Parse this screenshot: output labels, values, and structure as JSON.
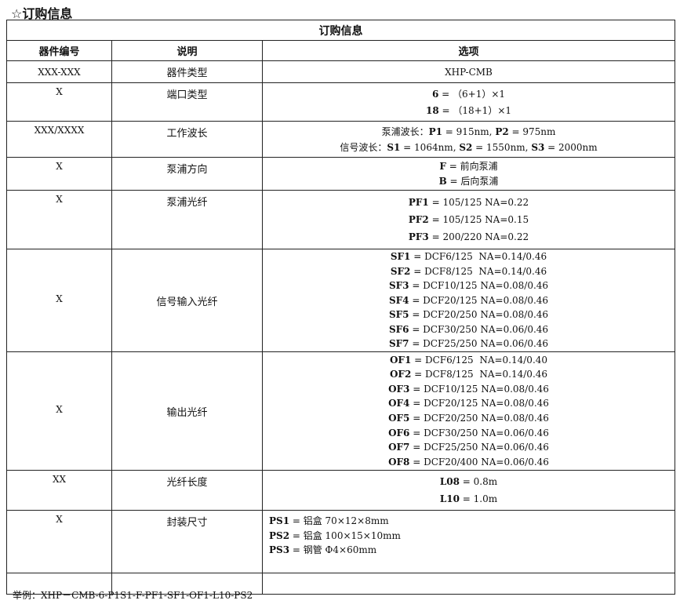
{
  "title": "☆订购信息",
  "table": {
    "caption": "订购信息",
    "headers": [
      "器件编号",
      "说明",
      "选项"
    ],
    "rows": [
      {
        "code": "XXX-XXX",
        "desc": "器件类型",
        "lines": [
          [
            {
              "b": false,
              "t": "XHP-CMB"
            }
          ]
        ]
      },
      {
        "code": "X",
        "desc": "端口类型",
        "lines": [
          [
            {
              "b": true,
              "t": "6"
            },
            {
              "b": false,
              "t": " = （6+1）×1"
            }
          ],
          [
            {
              "b": true,
              "t": "18"
            },
            {
              "b": false,
              "t": " = （18+1）×1"
            }
          ]
        ]
      },
      {
        "code": "XXX/XXXX",
        "desc": "工作波长",
        "lines": [
          [
            {
              "b": false,
              "t": "泵浦波长："
            },
            {
              "b": true,
              "t": "P1"
            },
            {
              "b": false,
              "t": " = 915nm, "
            },
            {
              "b": true,
              "t": "P2"
            },
            {
              "b": false,
              "t": " = 975nm"
            }
          ],
          [
            {
              "b": false,
              "t": "信号波长："
            },
            {
              "b": true,
              "t": "S1"
            },
            {
              "b": false,
              "t": " = 1064nm, "
            },
            {
              "b": true,
              "t": "S2"
            },
            {
              "b": false,
              "t": " = 1550nm, "
            },
            {
              "b": true,
              "t": "S3"
            },
            {
              "b": false,
              "t": " = 2000nm"
            }
          ]
        ]
      },
      {
        "code": "X",
        "desc": "泵浦方向",
        "style": "tight",
        "lines": [
          [
            {
              "b": true,
              "t": "F"
            },
            {
              "b": false,
              "t": " = 前向泵浦"
            }
          ],
          [
            {
              "b": true,
              "t": "B"
            },
            {
              "b": false,
              "t": " = 后向泵浦"
            }
          ]
        ]
      },
      {
        "code": "X",
        "desc": "泵浦光纤",
        "lines": [
          [
            {
              "b": true,
              "t": "PF1"
            },
            {
              "b": false,
              "t": " = 105/125 NA=0.22"
            }
          ],
          [
            {
              "b": true,
              "t": "PF2"
            },
            {
              "b": false,
              "t": " = 105/125 NA=0.15"
            }
          ],
          [
            {
              "b": true,
              "t": "PF3"
            },
            {
              "b": false,
              "t": " = 200/220 NA=0.22"
            }
          ]
        ]
      },
      {
        "code": "X",
        "desc": "信号输入光纤",
        "style": "tight",
        "lines": [
          [
            {
              "b": true,
              "t": "SF1"
            },
            {
              "b": false,
              "t": " = DCF6/125  NA=0.14/0.46"
            }
          ],
          [
            {
              "b": true,
              "t": "SF2"
            },
            {
              "b": false,
              "t": " = DCF8/125  NA=0.14/0.46"
            }
          ],
          [
            {
              "b": true,
              "t": "SF3"
            },
            {
              "b": false,
              "t": " = DCF10/125 NA=0.08/0.46"
            }
          ],
          [
            {
              "b": true,
              "t": "SF4"
            },
            {
              "b": false,
              "t": " = DCF20/125 NA=0.08/0.46"
            }
          ],
          [
            {
              "b": true,
              "t": "SF5"
            },
            {
              "b": false,
              "t": " = DCF20/250 NA=0.08/0.46"
            }
          ],
          [
            {
              "b": true,
              "t": "SF6"
            },
            {
              "b": false,
              "t": " = DCF30/250 NA=0.06/0.46"
            }
          ],
          [
            {
              "b": true,
              "t": "SF7"
            },
            {
              "b": false,
              "t": " = DCF25/250 NA=0.06/0.46"
            }
          ]
        ]
      },
      {
        "code": "X",
        "desc": "输出光纤",
        "style": "tight",
        "lines": [
          [
            {
              "b": true,
              "t": "OF1"
            },
            {
              "b": false,
              "t": " = DCF6/125  NA=0.14/0.40"
            }
          ],
          [
            {
              "b": true,
              "t": "OF2"
            },
            {
              "b": false,
              "t": " = DCF8/125  NA=0.14/0.46"
            }
          ],
          [
            {
              "b": true,
              "t": "OF3"
            },
            {
              "b": false,
              "t": " = DCF10/125 NA=0.08/0.46"
            }
          ],
          [
            {
              "b": true,
              "t": "OF4"
            },
            {
              "b": false,
              "t": " = DCF20/125 NA=0.08/0.46"
            }
          ],
          [
            {
              "b": true,
              "t": "OF5"
            },
            {
              "b": false,
              "t": " = DCF20/250 NA=0.08/0.46"
            }
          ],
          [
            {
              "b": true,
              "t": "OF6"
            },
            {
              "b": false,
              "t": " = DCF30/250 NA=0.06/0.46"
            }
          ],
          [
            {
              "b": true,
              "t": "OF7"
            },
            {
              "b": false,
              "t": " = DCF25/250 NA=0.06/0.46"
            }
          ],
          [
            {
              "b": true,
              "t": "OF8"
            },
            {
              "b": false,
              "t": " = DCF20/400 NA=0.06/0.46"
            }
          ]
        ]
      },
      {
        "code": "XX",
        "desc": "光纤长度",
        "lines": [
          [
            {
              "b": true,
              "t": "L08"
            },
            {
              "b": false,
              "t": " = 0.8m"
            }
          ],
          [
            {
              "b": true,
              "t": "L10"
            },
            {
              "b": false,
              "t": " = 1.0m"
            }
          ]
        ]
      },
      {
        "code": "X",
        "desc": "封装尺寸",
        "style": "left",
        "lines": [
          [
            {
              "b": true,
              "t": "PS1"
            },
            {
              "b": false,
              "t": " = 铝盒 70×12×8mm"
            }
          ],
          [
            {
              "b": true,
              "t": "PS2"
            },
            {
              "b": false,
              "t": " = 铝盒 100×15×10mm"
            }
          ],
          [
            {
              "b": true,
              "t": "PS3"
            },
            {
              "b": false,
              "t": " = 钢管 Φ4×60mm"
            }
          ]
        ]
      },
      {
        "code": "",
        "desc": "",
        "lines": []
      }
    ]
  },
  "example": "举例：XHP－CMB-6-P1S1-F-PF1-SF1-OF1-L10-PS2"
}
